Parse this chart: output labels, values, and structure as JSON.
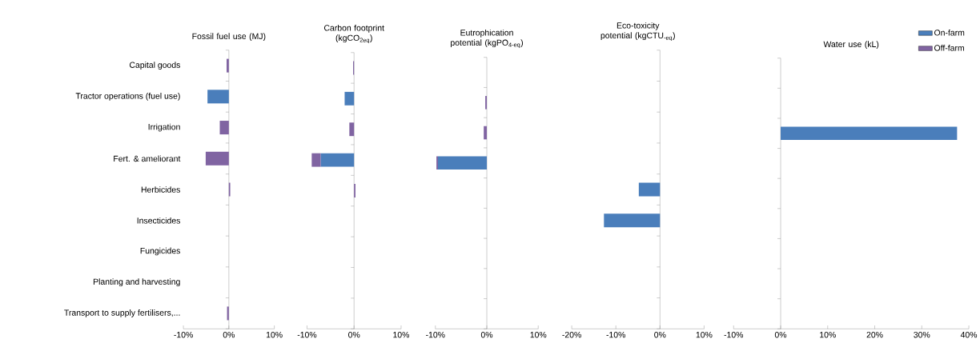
{
  "chart_data": [
    {
      "type": "bar",
      "orientation": "horizontal",
      "stacked": true,
      "title": "Fossil fuel use (MJ)",
      "categories": [
        "Capital goods",
        "Tractor operations (fuel use)",
        "Irrigation",
        "Fert. & ameliorant",
        "Herbicides",
        "Insecticides",
        "Fungicides",
        "Planting and harvesting",
        "Transport to supply fertilisers,..."
      ],
      "series": [
        {
          "color": "#4a7ebb",
          "values": [
            null,
            -4.7,
            null,
            null,
            null,
            null,
            null,
            null,
            null
          ]
        },
        {
          "color": "#8064a2",
          "values": [
            -0.5,
            null,
            -2,
            -5.1,
            0.3,
            null,
            null,
            null,
            -0.4
          ]
        }
      ],
      "xlim": [
        -10,
        10
      ],
      "xticks": [
        {
          "value": -10,
          "label": "-10%"
        },
        {
          "value": 0,
          "label": "0%"
        },
        {
          "value": 10,
          "label": "10%"
        }
      ]
    },
    {
      "type": "bar",
      "orientation": "horizontal",
      "stacked": true,
      "title": "Carbon footprint (kgCO$_{2eq}$)",
      "categories": [
        null,
        null,
        null,
        null,
        null,
        null,
        null,
        null,
        null
      ],
      "series": [
        {
          "color": "#4a7ebb",
          "values": [
            null,
            -2,
            null,
            -7.1,
            null,
            null,
            null,
            null,
            null
          ]
        },
        {
          "color": "#8064a2",
          "values": [
            -0.2,
            null,
            -1,
            -1.9,
            0.3,
            null,
            null,
            null,
            null
          ]
        }
      ],
      "xlim": [
        -10,
        10
      ],
      "xticks": [
        {
          "value": -10,
          "label": "-10%"
        },
        {
          "value": 0,
          "label": "0%"
        },
        {
          "value": 10,
          "label": "10%"
        }
      ],
      "tick_labels": "x"
    },
    {
      "type": "bar",
      "orientation": "horizontal",
      "stacked": true,
      "title": "Eutrophication potential (kgPO$_{4-eq}$)",
      "categories": [
        null,
        null,
        null,
        null,
        null,
        null,
        null,
        null,
        null
      ],
      "series": [
        {
          "color": "#4a7ebb",
          "values": [
            null,
            null,
            null,
            -9.5,
            null,
            null,
            null,
            null,
            null
          ]
        },
        {
          "color": "#8064a2",
          "values": [
            null,
            -0.3,
            -0.6,
            -0.3,
            null,
            null,
            null,
            null,
            null
          ]
        }
      ],
      "xlim": [
        -10,
        10
      ],
      "xticks": [
        {
          "value": -10,
          "label": "-10%"
        },
        {
          "value": 0,
          "label": "0%"
        },
        {
          "value": 10,
          "label": "10%"
        }
      ],
      "tick_labels": "x"
    },
    {
      "type": "bar",
      "orientation": "horizontal",
      "title": "Eco-toxicity potential (kgCTU$_{-eq}$)",
      "categories": [
        null,
        null,
        null,
        null,
        null,
        null,
        null,
        null,
        null
      ],
      "series": [
        {
          "color": "#4a7ebb",
          "values": [
            null,
            null,
            null,
            null,
            -4.8,
            -12.7,
            null,
            null,
            null
          ]
        }
      ],
      "xlim": [
        -20,
        10
      ],
      "xticks": [
        {
          "value": -20,
          "label": "-20%"
        },
        {
          "value": -10,
          "label": "-10%"
        },
        {
          "value": 0,
          "label": "0%"
        },
        {
          "value": 10,
          "label": "10%"
        }
      ],
      "tick_labels": "x"
    },
    {
      "type": "bar",
      "orientation": "horizontal",
      "title": "Water use (kL)",
      "legend": "top right",
      "categories": [
        null,
        null,
        null,
        null,
        null,
        null,
        null,
        null,
        null
      ],
      "series": [
        {
          "name": "On-farm",
          "color": "#4a7ebb",
          "values": [
            null,
            null,
            37.5,
            null,
            null,
            null,
            null,
            null,
            null
          ]
        },
        {
          "name": "Off-farm",
          "color": "#8064a2",
          "values": [
            null,
            null,
            null,
            null,
            null,
            null,
            null,
            null,
            null
          ]
        }
      ],
      "xlim": [
        -10,
        40
      ],
      "xticks": [
        {
          "value": -10,
          "label": "-10%"
        },
        {
          "value": 0,
          "label": "0%"
        },
        {
          "value": 10,
          "label": "10%"
        },
        {
          "value": 20,
          "label": "20%"
        },
        {
          "value": 30,
          "label": "30%"
        },
        {
          "value": 40,
          "label": "40%"
        }
      ],
      "tick_labels": "x"
    }
  ]
}
